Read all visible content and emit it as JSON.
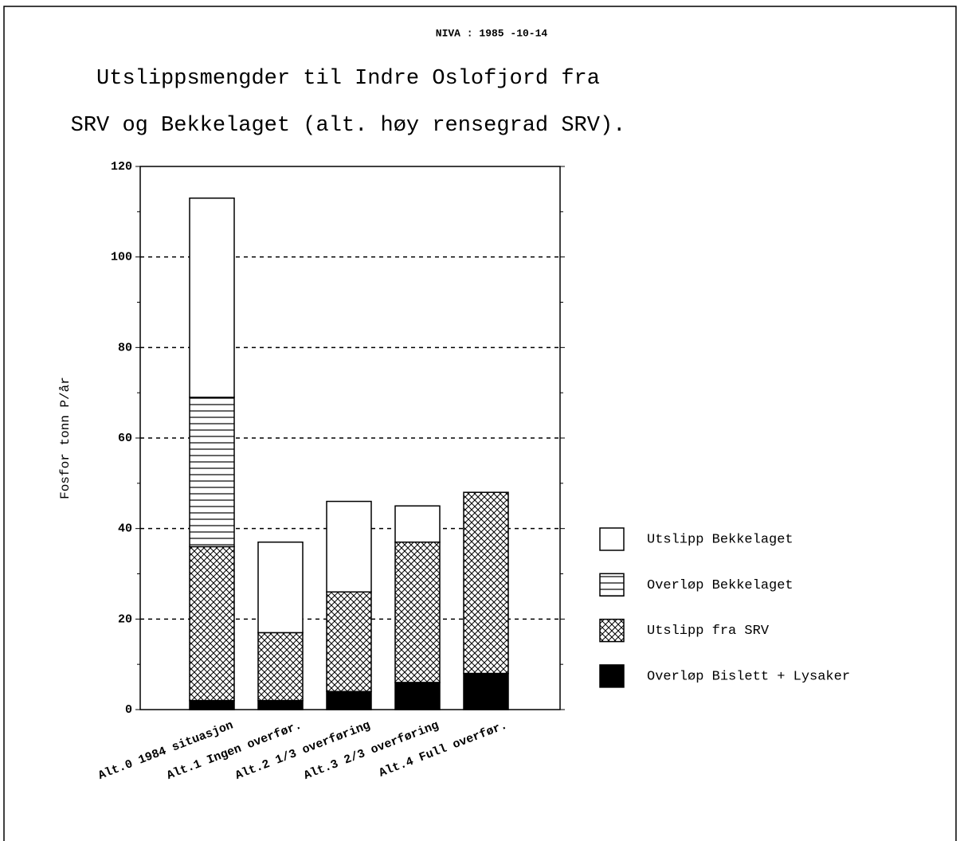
{
  "chart_data": {
    "type": "stacked_bar",
    "header": "NIVA :  1985 -10-14",
    "title": [
      "Utslippsmengder til Indre Oslofjord fra",
      "SRV og Bekkelaget (alt. høy rensegrad SRV)."
    ],
    "ylabel": "Fosfor tonn P/år",
    "categories": [
      "Alt.0 1984 situasjon",
      "Alt.1 Ingen overfør.",
      "Alt.2 1/3 overføring",
      "Alt.3 2/3 overføring",
      "Alt.4 Full overfør."
    ],
    "series": [
      {
        "name": "Overløp Bislett + Lysaker",
        "color": "#000000",
        "pattern": "solid",
        "values": [
          2,
          2,
          4,
          6,
          8
        ]
      },
      {
        "name": "Utslipp fra SRV",
        "color": "#000000",
        "pattern": "crosshatch",
        "values": [
          34,
          15,
          22,
          31,
          40
        ]
      },
      {
        "name": "Overløp Bekkelaget",
        "color": "#000000",
        "pattern": "hlines",
        "values": [
          33,
          0,
          0,
          0,
          0
        ]
      },
      {
        "name": "Utslipp Bekkelaget",
        "color": "#000000",
        "pattern": "none",
        "values": [
          44,
          20,
          20,
          8,
          0
        ]
      }
    ],
    "ylim": [
      0,
      120
    ],
    "yticks": [
      0,
      20,
      40,
      60,
      80,
      100,
      120
    ],
    "yminorticks": [
      10,
      30,
      50,
      70,
      90,
      110
    ],
    "grid": true,
    "legend": "right"
  }
}
